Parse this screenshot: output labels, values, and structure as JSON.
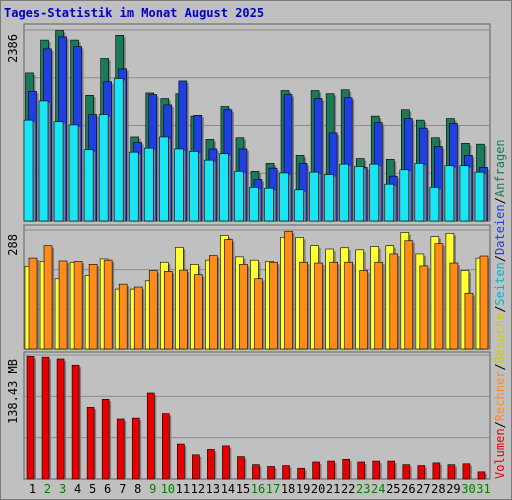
{
  "chart_data": {
    "type": "bar",
    "title": "Tages-Statistik im Monat August 2025",
    "categories": [
      "1",
      "2",
      "3",
      "4",
      "5",
      "6",
      "7",
      "8",
      "9",
      "10",
      "11",
      "12",
      "13",
      "14",
      "15",
      "16",
      "17",
      "18",
      "19",
      "20",
      "21",
      "22",
      "23",
      "24",
      "25",
      "26",
      "27",
      "28",
      "29",
      "30",
      "31"
    ],
    "weekend_days": [
      "2",
      "3",
      "9",
      "10",
      "16",
      "17",
      "23",
      "24",
      "30",
      "31"
    ],
    "colors": {
      "weekday_label": "#000000",
      "weekend_label": "#008000",
      "anfragen": "#1a7a5a",
      "dateien": "#1f3fe0",
      "seiten": "#19e5f5",
      "besuche": "#ffff33",
      "rechner": "#ff8c1a",
      "volumen": "#e60000",
      "title": "#0000c8",
      "background": "#c0c0c0",
      "grid": "#8c8c8c"
    },
    "panels": [
      {
        "max_label": "2386",
        "ylim": [
          0,
          2386
        ],
        "series": [
          {
            "name": "Anfragen",
            "values": [
              1850,
              2260,
              2380,
              2260,
              1570,
              2030,
              2320,
              1050,
              1600,
              1530,
              1590,
              1310,
              1020,
              1430,
              1040,
              620,
              720,
              1630,
              820,
              1630,
              1590,
              1640,
              780,
              1310,
              770,
              1390,
              1260,
              1040,
              1280,
              970,
              960
            ]
          },
          {
            "name": "Dateien",
            "values": [
              1620,
              2150,
              2300,
              2180,
              1330,
              1740,
              1900,
              980,
              1580,
              1450,
              1750,
              1320,
              900,
              1390,
              900,
              520,
              660,
              1580,
              720,
              1530,
              1100,
              1540,
              670,
              1230,
              560,
              1280,
              1160,
              930,
              1220,
              820,
              670
            ]
          },
          {
            "name": "Seiten",
            "values": [
              1260,
              1500,
              1240,
              1200,
              890,
              1330,
              1780,
              860,
              910,
              1050,
              900,
              870,
              760,
              840,
              620,
              420,
              410,
              600,
              390,
              610,
              580,
              710,
              680,
              710,
              460,
              640,
              720,
              420,
              690,
              690,
              610
            ]
          }
        ]
      },
      {
        "max_label": "288",
        "ylim": [
          0,
          288
        ],
        "series": [
          {
            "name": "Besuche",
            "values": [
              200,
              212,
              170,
              210,
              178,
              218,
              145,
              145,
              165,
              210,
              246,
              205,
              215,
              275,
              223,
              215,
              212,
              270,
              270,
              250,
              242,
              245,
              240,
              248,
              250,
              282,
              230,
              272,
              280,
              190,
              220
            ]
          },
          {
            "name": "Rechner",
            "values": [
              220,
              250,
              213,
              212,
              205,
              215,
              157,
              150,
              190,
              188,
              191,
              180,
              226,
              265,
              205,
              170,
              210,
              285,
              210,
              208,
              210,
              210,
              190,
              210,
              230,
              262,
              201,
              255,
              208,
              135,
              225
            ]
          }
        ]
      },
      {
        "max_label": "138.43 MB",
        "ylim": [
          0,
          138.43
        ],
        "series": [
          {
            "name": "Volumen",
            "values": [
              137,
              136,
              134,
              127,
              80,
              89,
              67,
              68,
              96,
              73,
              39,
              27,
              33,
              37,
              25,
              16,
              14,
              15,
              12,
              19,
              20,
              22,
              19,
              20,
              20,
              16,
              15,
              18,
              16,
              17,
              8
            ]
          }
        ]
      }
    ],
    "legend": [
      {
        "text": "Volumen",
        "color": "#e60000"
      },
      {
        "text": "Rechner",
        "color": "#ff8c1a"
      },
      {
        "text": "Besuche",
        "color": "#cccc00"
      },
      {
        "text": "Seiten",
        "color": "#00b4d2"
      },
      {
        "text": "Dateien",
        "color": "#1f3fe0"
      },
      {
        "text": "Anfragen",
        "color": "#1a7a5a"
      }
    ],
    "legend_separator": "/"
  }
}
